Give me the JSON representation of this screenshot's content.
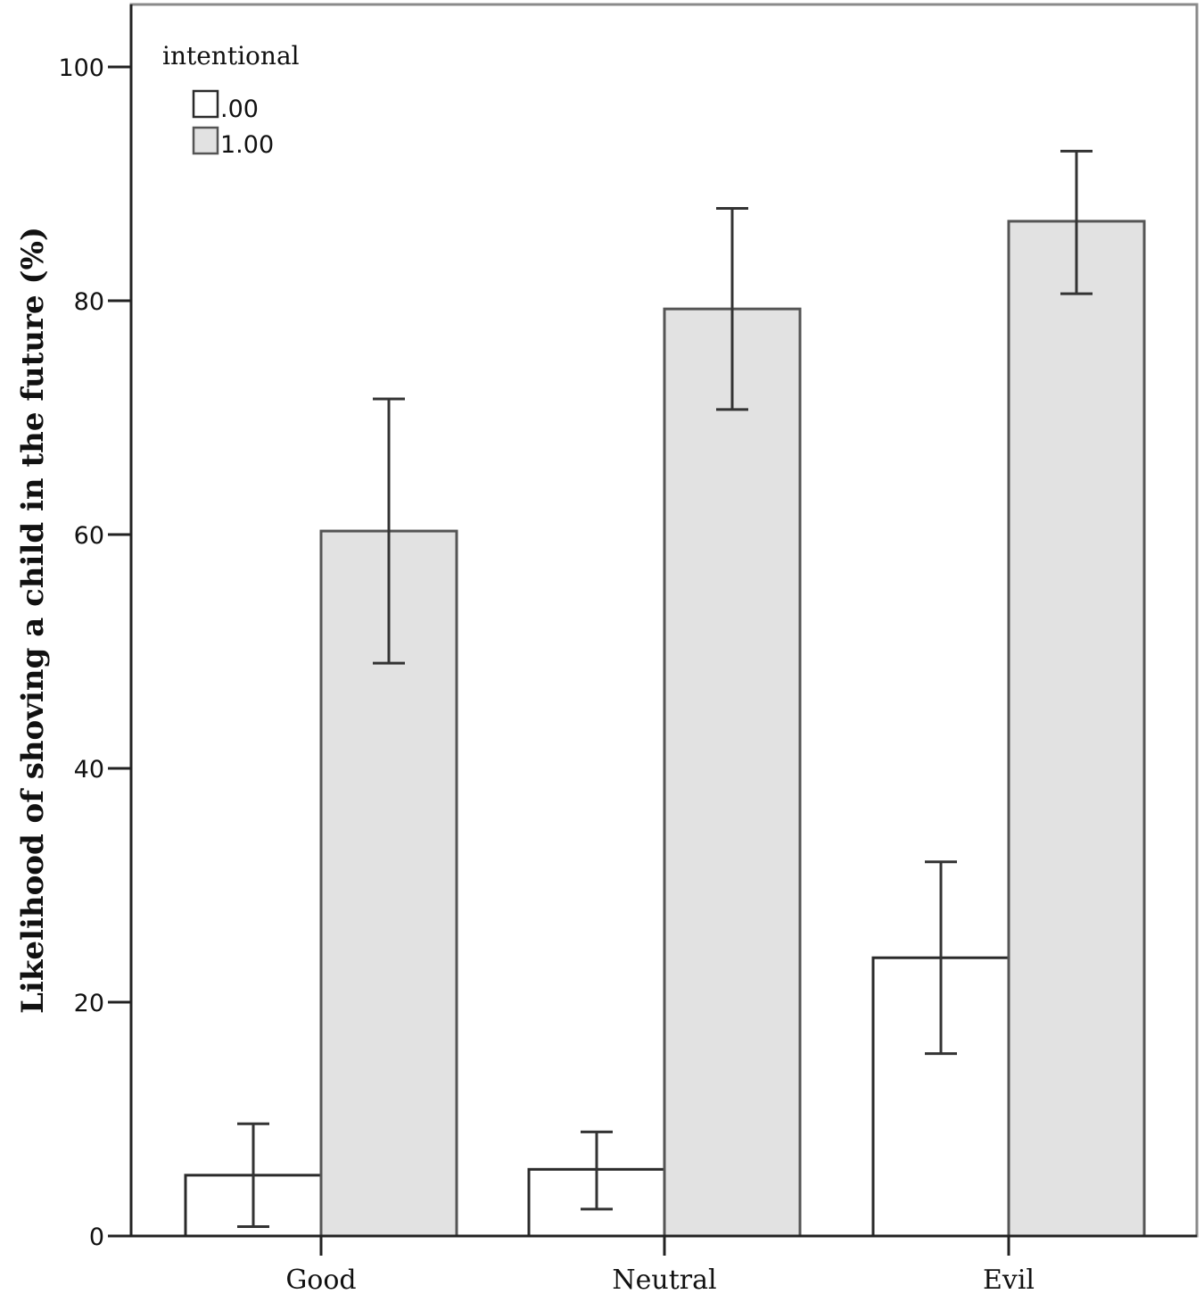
{
  "chart_data": {
    "type": "bar",
    "title": "",
    "xlabel": "",
    "ylabel": "Likelihood of shoving a child in the future (%)",
    "ylim": [
      0,
      105
    ],
    "yticks": [
      0,
      20,
      40,
      60,
      80,
      100
    ],
    "ytick_labels": [
      "0",
      "20",
      "40",
      "60",
      "80",
      "100"
    ],
    "categories": [
      "Good",
      "Neutral",
      "Evil"
    ],
    "legend": {
      "title": "intentional",
      "position": "top-left"
    },
    "series": [
      {
        "name": ".00",
        "color": "#ffffff",
        "values": [
          5.2,
          5.7,
          23.8
        ],
        "error_low": [
          0.8,
          2.3,
          15.6
        ],
        "error_high": [
          9.6,
          8.9,
          32.0
        ]
      },
      {
        "name": "1.00",
        "color": "#e2e2e2",
        "values": [
          60.3,
          79.3,
          86.8
        ],
        "error_low": [
          49.0,
          70.7,
          80.6
        ],
        "error_high": [
          71.6,
          87.9,
          92.8
        ]
      }
    ]
  }
}
